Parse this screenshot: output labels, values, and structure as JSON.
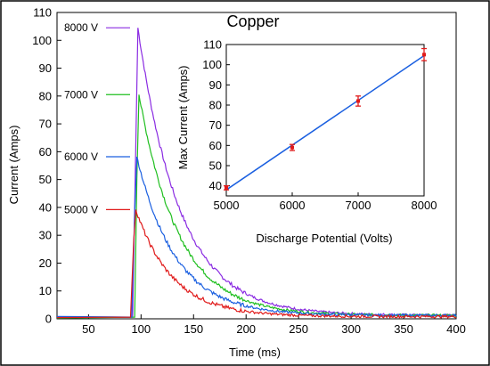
{
  "chart_data": [
    {
      "type": "line",
      "title": "Copper",
      "xlabel": "Time (ms)",
      "ylabel": "Current (Amps)",
      "xlim": [
        20,
        400
      ],
      "ylim": [
        0,
        110
      ],
      "xticks": [
        50,
        100,
        150,
        200,
        250,
        300,
        350,
        400
      ],
      "yticks": [
        0,
        10,
        20,
        30,
        40,
        50,
        60,
        70,
        80,
        90,
        100,
        110
      ],
      "legend_position": "left, inside plot",
      "series": [
        {
          "name": "8000 V",
          "color": "#8a2be2",
          "rise": [
            [
              20,
              0.6
            ],
            [
              92,
              0.6
            ],
            [
              95,
              62
            ],
            [
              97,
              104.5
            ]
          ],
          "decay_tau": 40,
          "peak_t": 97,
          "peak": 104.5,
          "tail": 1.2
        },
        {
          "name": "7000 V",
          "color": "#1fbf1f",
          "rise": [
            [
              20,
              0.6
            ],
            [
              94,
              0.6
            ],
            [
              96,
              50
            ],
            [
              98,
              80.5
            ]
          ],
          "decay_tau": 38,
          "peak_t": 98,
          "peak": 80.5,
          "tail": 1.2
        },
        {
          "name": "6000 V",
          "color": "#1a5fe0",
          "rise": [
            [
              20,
              0.6
            ],
            [
              91,
              0.6
            ],
            [
              94,
              38
            ],
            [
              96,
              58.2
            ]
          ],
          "decay_tau": 37,
          "peak_t": 96,
          "peak": 58.2,
          "tail": 1.2
        },
        {
          "name": "5000 V",
          "color": "#e01a1a",
          "rise": [
            [
              20,
              0.6
            ],
            [
              90,
              0.6
            ],
            [
              93,
              28
            ],
            [
              95,
              39.2
            ]
          ],
          "decay_tau": 35,
          "peak_t": 95,
          "peak": 39.2,
          "tail": 0.8
        }
      ]
    },
    {
      "type": "scatter",
      "title": "",
      "xlabel": "Discharge Potential (Volts)",
      "ylabel": "Max Current (Amps)",
      "xlim": [
        5000,
        8000
      ],
      "ylim": [
        35,
        110
      ],
      "xticks": [
        5000,
        6000,
        7000,
        8000
      ],
      "yticks": [
        40,
        50,
        60,
        70,
        80,
        90,
        100,
        110
      ],
      "points": [
        {
          "x": 5000,
          "y": 39,
          "err": 1
        },
        {
          "x": 6000,
          "y": 59,
          "err": 1.5
        },
        {
          "x": 7000,
          "y": 82,
          "err": 2.5
        },
        {
          "x": 8000,
          "y": 105,
          "err": 3
        }
      ],
      "fit_line": {
        "x": [
          5000,
          8000
        ],
        "y": [
          38,
          104.5
        ],
        "color": "#1a5fe0"
      },
      "point_color": "#e01a1a"
    }
  ]
}
